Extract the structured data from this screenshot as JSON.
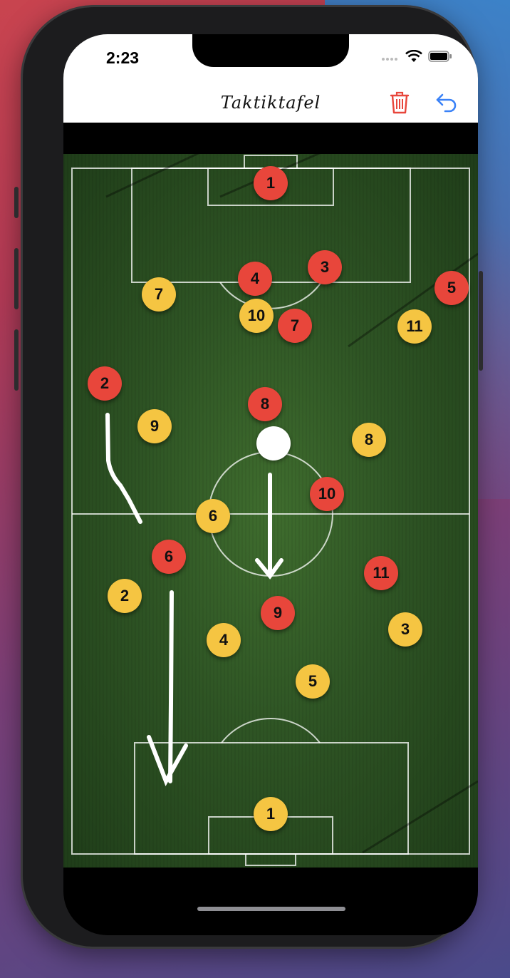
{
  "status_bar": {
    "time": "2:23"
  },
  "nav": {
    "title": "Taktiktafel",
    "trash_icon": "trash-icon",
    "undo_icon": "undo-arrow-icon"
  },
  "colors": {
    "team_red": "#e8463b",
    "team_yellow": "#f5c542",
    "trash": "#e8463b",
    "undo": "#3a82f7"
  },
  "players": {
    "red": [
      "1",
      "4",
      "3",
      "5",
      "7",
      "2",
      "8",
      "10",
      "6",
      "11",
      "9"
    ],
    "yellow": [
      "7",
      "10",
      "11",
      "9",
      "8",
      "6",
      "2",
      "3",
      "4",
      "5",
      "1"
    ]
  }
}
